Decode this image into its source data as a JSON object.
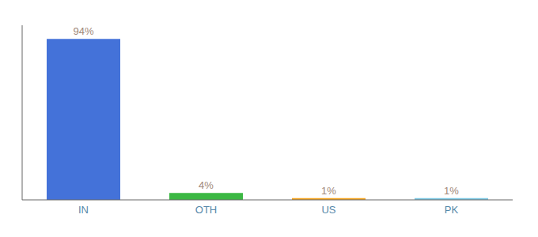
{
  "chart_data": {
    "type": "bar",
    "categories": [
      "IN",
      "OTH",
      "US",
      "PK"
    ],
    "values": [
      94,
      4,
      1,
      1
    ],
    "value_labels": [
      "94%",
      "4%",
      "1%",
      "1%"
    ],
    "data_labels": true,
    "colors": [
      "#4472d9",
      "#3cb843",
      "#f5a623",
      "#7ec8e3"
    ],
    "ylim": [
      0,
      102
    ],
    "grid": false,
    "tick_labels": "x"
  }
}
